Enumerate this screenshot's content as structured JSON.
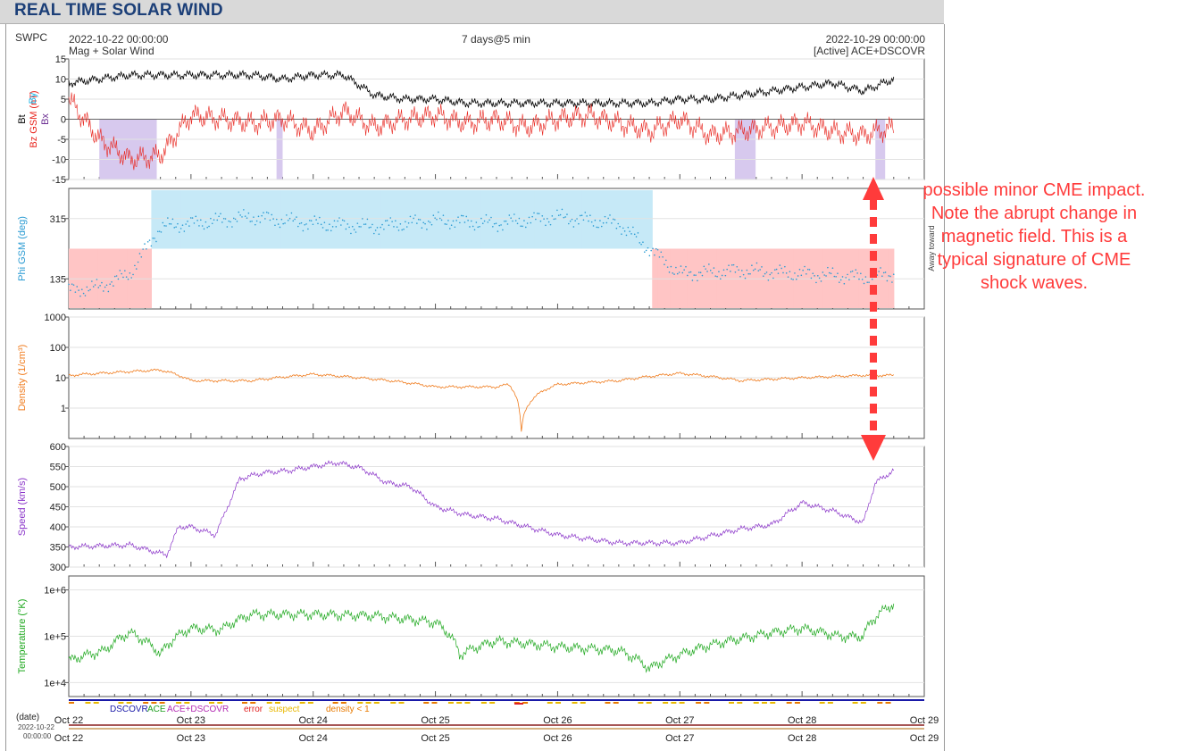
{
  "page": {
    "title": "REAL TIME SOLAR WIND"
  },
  "header": {
    "source": "SWPC",
    "start_time": "2022-10-22 00:00:00",
    "span": "7 days@5 min",
    "end_time": "2022-10-29 00:00:00",
    "subtitle": "Mag + Solar Wind",
    "active": "[Active] ACE+DSCOVR"
  },
  "annotation": {
    "lines": [
      "possible minor CME impact.",
      "Note the abrupt change in",
      "magnetic field. This is a",
      "typical signature of CME",
      "shock waves."
    ]
  },
  "colors": {
    "bt": "#000000",
    "bz": "#e8231c",
    "bx": "#6a2c91",
    "by": "#17b3e6",
    "phi_low": "#ffc5c5",
    "phi_high": "#c6e9f7",
    "phi_pts": "#2a9bd3",
    "density": "#f07c1e",
    "speed": "#8a34c9",
    "temp": "#1ea81e",
    "neg_bz_band": "#d7c9ee",
    "annotation": "#ff3b3b"
  },
  "chart_data": [
    {
      "type": "line",
      "panel": "Bz/Bt",
      "ylabel_parts": [
        "Bt",
        "Bz GSM (nT)",
        "Bx",
        "By"
      ],
      "ylim": [
        -15,
        15
      ],
      "yticks": [
        "15",
        "10",
        "5",
        "0",
        "-5",
        "-10",
        "-15"
      ],
      "x_days": [
        0,
        0.25,
        0.5,
        0.75,
        1,
        1.25,
        1.5,
        1.75,
        2,
        2.25,
        2.5,
        2.75,
        3,
        3.25,
        3.5,
        3.75,
        4,
        4.25,
        4.5,
        4.75,
        5,
        5.25,
        5.5,
        5.75,
        6,
        6.25,
        6.5,
        6.75
      ],
      "series": [
        {
          "name": "Bt",
          "values": [
            9,
            10,
            11,
            11,
            11,
            11,
            11,
            10,
            11,
            11,
            6,
            5,
            5,
            4,
            4,
            4,
            4,
            4,
            4,
            4,
            5,
            5,
            6,
            7,
            8,
            9,
            7,
            10
          ]
        },
        {
          "name": "Bz GSM",
          "values": [
            5,
            -5,
            -10,
            -9,
            1,
            0,
            -1,
            0,
            -3,
            2,
            -2,
            0,
            1,
            -1,
            0,
            -2,
            0,
            1,
            -1,
            -3,
            0,
            -4,
            -3,
            -2,
            -1,
            -3,
            -4,
            -2
          ]
        }
      ],
      "negative_bz_intervals_days": [
        [
          0.25,
          0.72
        ],
        [
          1.7,
          1.75
        ],
        [
          5.45,
          5.62
        ],
        [
          6.6,
          6.68
        ]
      ]
    },
    {
      "type": "scatter",
      "panel": "Phi",
      "ylabel": "Phi GSM (deg)",
      "yticks": [
        "315",
        "135"
      ],
      "ylim": [
        45,
        405
      ],
      "x_days": [
        0,
        0.25,
        0.5,
        0.75,
        1,
        1.5,
        2,
        2.5,
        3,
        3.5,
        4,
        4.5,
        5,
        5.5,
        6,
        6.5,
        6.75
      ],
      "values": [
        100,
        110,
        150,
        290,
        300,
        320,
        300,
        290,
        310,
        300,
        320,
        300,
        150,
        160,
        150,
        140,
        150
      ],
      "away_toward": "Away toward"
    },
    {
      "type": "line",
      "panel": "Density",
      "ylabel": "Density (1/cm³)",
      "yscale": "log",
      "ylim": [
        0.1,
        1000
      ],
      "yticks": [
        "1000",
        "100",
        "10",
        "1"
      ],
      "x_days": [
        0,
        0.25,
        0.5,
        0.75,
        1,
        1.5,
        2,
        2.5,
        3,
        3.5,
        3.6,
        3.7,
        4,
        4.5,
        5,
        5.5,
        6,
        6.5,
        6.75
      ],
      "values": [
        12,
        14,
        16,
        18,
        8,
        8,
        13,
        9,
        5,
        5,
        6,
        0.1,
        6,
        8,
        14,
        8,
        10,
        12,
        12
      ]
    },
    {
      "type": "line",
      "panel": "Speed",
      "ylabel": "Speed (km/s)",
      "ylim": [
        300,
        600
      ],
      "yticks": [
        "600",
        "550",
        "500",
        "450",
        "400",
        "350",
        "300"
      ],
      "x_days": [
        0,
        0.5,
        0.8,
        0.9,
        1,
        1.2,
        1.4,
        1.6,
        1.8,
        2,
        2.2,
        2.4,
        2.6,
        2.8,
        3,
        3.25,
        3.5,
        4,
        4.5,
        5,
        5.5,
        5.75,
        6,
        6.25,
        6.5,
        6.6,
        6.75
      ],
      "values": [
        350,
        355,
        330,
        400,
        400,
        380,
        520,
        535,
        540,
        550,
        560,
        545,
        510,
        500,
        450,
        430,
        420,
        380,
        360,
        360,
        395,
        405,
        460,
        440,
        410,
        510,
        540
      ]
    },
    {
      "type": "line",
      "panel": "Temperature",
      "ylabel": "Temperature (°K)",
      "yscale": "log",
      "ylim": [
        5000,
        2000000
      ],
      "yticks": [
        "1e+6",
        "1e+5",
        "1e+4"
      ],
      "x_days": [
        0,
        0.3,
        0.5,
        0.75,
        1,
        1.25,
        1.5,
        2,
        2.5,
        3,
        3.2,
        3.5,
        4,
        4.5,
        4.75,
        5,
        5.5,
        6,
        6.3,
        6.5,
        6.75
      ],
      "values": [
        30000,
        50000,
        120000,
        40000,
        150000,
        140000,
        300000,
        300000,
        280000,
        200000,
        40000,
        80000,
        60000,
        50000,
        20000,
        40000,
        90000,
        150000,
        100000,
        100000,
        500000
      ]
    }
  ],
  "status": {
    "legend": [
      {
        "label": "DSCOVR",
        "color": "#1a1aa8"
      },
      {
        "label": "ACE",
        "color": "#22a022"
      },
      {
        "label": "ACE+DSCOVR",
        "color": "#b42db4"
      },
      {
        "label": "error",
        "color": "#e02020"
      },
      {
        "label": "suspect",
        "color": "#e8b800"
      },
      {
        "label": "density < 1",
        "color": "#e87a00"
      }
    ],
    "date_label": "(date)",
    "start_stamp_date": "2022-10-22",
    "start_stamp_time": "00:00:00"
  },
  "x_axis": {
    "ticks": [
      "Oct 22",
      "Oct 23",
      "Oct 24",
      "Oct 25",
      "Oct 26",
      "Oct 27",
      "Oct 28",
      "Oct 29"
    ]
  }
}
